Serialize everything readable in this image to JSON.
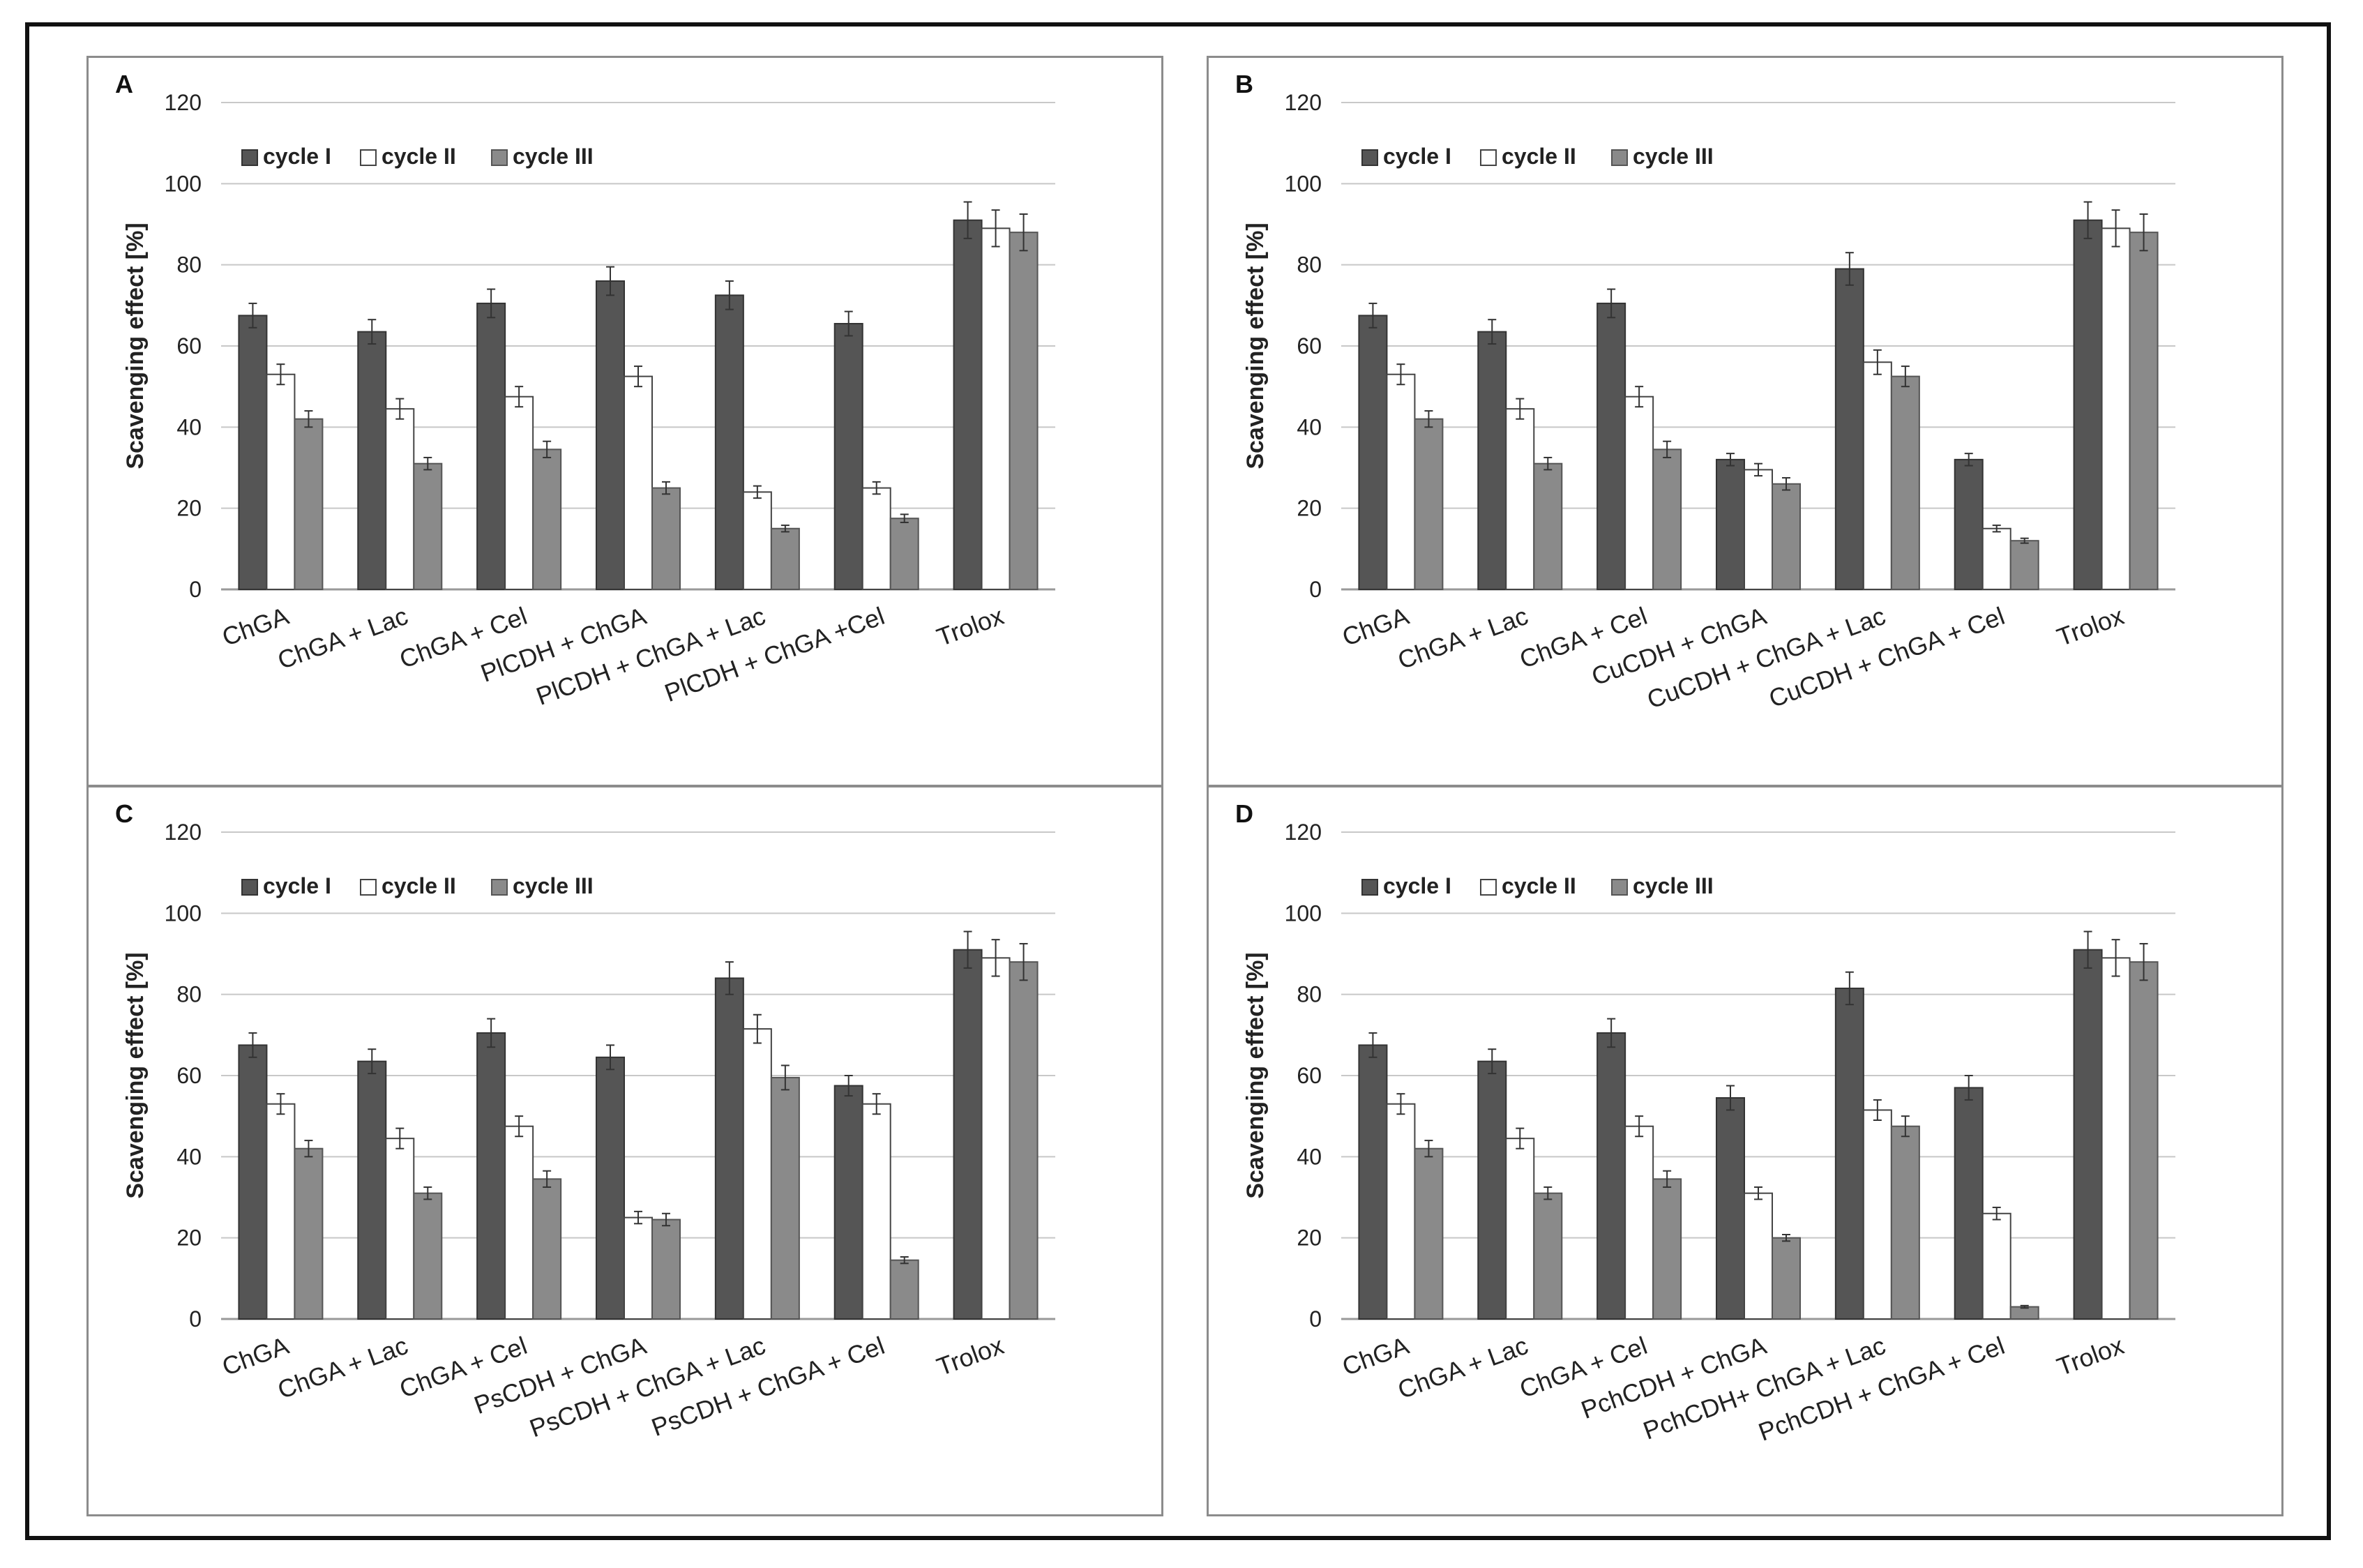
{
  "series_styles": [
    {
      "name": "cycle I",
      "fill": "#555555",
      "stroke": "#333333"
    },
    {
      "name": "cycle II",
      "fill": "#ffffff",
      "stroke": "#444444"
    },
    {
      "name": "cycle III",
      "fill": "#8a8a8a",
      "stroke": "#555555"
    }
  ],
  "chart_data": [
    {
      "panel": "A",
      "type": "bar",
      "ylabel": "Scavenging effect [%]",
      "ylim": [
        0,
        120
      ],
      "yticks": [
        0,
        20,
        40,
        60,
        80,
        100,
        120
      ],
      "grid": true,
      "legend_position": "top-left",
      "categories": [
        "ChGA",
        "ChGA + Lac",
        "ChGA + Cel",
        "PlCDH + ChGA",
        "PlCDH + ChGA + Lac",
        "PlCDH + ChGA +Cel",
        "Trolox"
      ],
      "series": [
        {
          "name": "cycle I",
          "values": [
            67.5,
            63.5,
            70.5,
            76,
            72.5,
            65.5,
            91
          ],
          "errors": [
            3,
            3,
            3.5,
            3.5,
            3.5,
            3,
            4.5
          ]
        },
        {
          "name": "cycle II",
          "values": [
            53,
            44.5,
            47.5,
            52.5,
            24,
            25,
            89
          ],
          "errors": [
            2.5,
            2.5,
            2.5,
            2.5,
            1.5,
            1.5,
            4.5
          ]
        },
        {
          "name": "cycle III",
          "values": [
            42,
            31,
            34.5,
            25,
            15,
            17.5,
            88
          ],
          "errors": [
            2,
            1.5,
            2,
            1.5,
            0.8,
            1,
            4.5
          ]
        }
      ]
    },
    {
      "panel": "B",
      "type": "bar",
      "ylabel": "Scavenging effect [%]",
      "ylim": [
        0,
        120
      ],
      "yticks": [
        0,
        20,
        40,
        60,
        80,
        100,
        120
      ],
      "grid": true,
      "legend_position": "top-left",
      "categories": [
        "ChGA",
        "ChGA + Lac",
        "ChGA + Cel",
        "CuCDH + ChGA",
        "CuCDH + ChGA + Lac",
        "CuCDH + ChGA + Cel",
        "Trolox"
      ],
      "series": [
        {
          "name": "cycle I",
          "values": [
            67.5,
            63.5,
            70.5,
            32,
            79,
            32,
            91
          ],
          "errors": [
            3,
            3,
            3.5,
            1.5,
            4,
            1.5,
            4.5
          ]
        },
        {
          "name": "cycle II",
          "values": [
            53,
            44.5,
            47.5,
            29.5,
            56,
            15,
            89
          ],
          "errors": [
            2.5,
            2.5,
            2.5,
            1.5,
            3,
            0.8,
            4.5
          ]
        },
        {
          "name": "cycle III",
          "values": [
            42,
            31,
            34.5,
            26,
            52.5,
            12,
            88
          ],
          "errors": [
            2,
            1.5,
            2,
            1.5,
            2.5,
            0.6,
            4.5
          ]
        }
      ]
    },
    {
      "panel": "C",
      "type": "bar",
      "ylabel": "Scavenging effect [%]",
      "ylim": [
        0,
        120
      ],
      "yticks": [
        0,
        20,
        40,
        60,
        80,
        100,
        120
      ],
      "grid": true,
      "legend_position": "top-left",
      "categories": [
        "ChGA",
        "ChGA + Lac",
        "ChGA + Cel",
        "PsCDH + ChGA",
        "PsCDH + ChGA + Lac",
        "PsCDH + ChGA + Cel",
        "Trolox"
      ],
      "series": [
        {
          "name": "cycle I",
          "values": [
            67.5,
            63.5,
            70.5,
            64.5,
            84,
            57.5,
            91
          ],
          "errors": [
            3,
            3,
            3.5,
            3,
            4,
            2.5,
            4.5
          ]
        },
        {
          "name": "cycle II",
          "values": [
            53,
            44.5,
            47.5,
            25,
            71.5,
            53,
            89
          ],
          "errors": [
            2.5,
            2.5,
            2.5,
            1.5,
            3.5,
            2.5,
            4.5
          ]
        },
        {
          "name": "cycle III",
          "values": [
            42,
            31,
            34.5,
            24.5,
            59.5,
            14.5,
            88
          ],
          "errors": [
            2,
            1.5,
            2,
            1.5,
            3,
            0.8,
            4.5
          ]
        }
      ]
    },
    {
      "panel": "D",
      "type": "bar",
      "ylabel": "Scavenging effect [%]",
      "ylim": [
        0,
        120
      ],
      "yticks": [
        0,
        20,
        40,
        60,
        80,
        100,
        120
      ],
      "grid": true,
      "legend_position": "top-left",
      "categories": [
        "ChGA",
        "ChGA + Lac",
        "ChGA + Cel",
        "PchCDH + ChGA",
        "PchCDH+ ChGA + Lac",
        "PchCDH + ChGA + Cel",
        "Trolox"
      ],
      "series": [
        {
          "name": "cycle I",
          "values": [
            67.5,
            63.5,
            70.5,
            54.5,
            81.5,
            57,
            91
          ],
          "errors": [
            3,
            3,
            3.5,
            3,
            4,
            3,
            4.5
          ]
        },
        {
          "name": "cycle II",
          "values": [
            53,
            44.5,
            47.5,
            31,
            51.5,
            26,
            89
          ],
          "errors": [
            2.5,
            2.5,
            2.5,
            1.5,
            2.5,
            1.5,
            4.5
          ]
        },
        {
          "name": "cycle III",
          "values": [
            42,
            31,
            34.5,
            20,
            47.5,
            3,
            88
          ],
          "errors": [
            2,
            1.5,
            2,
            0.8,
            2.5,
            0.3,
            4.5
          ]
        }
      ]
    }
  ]
}
